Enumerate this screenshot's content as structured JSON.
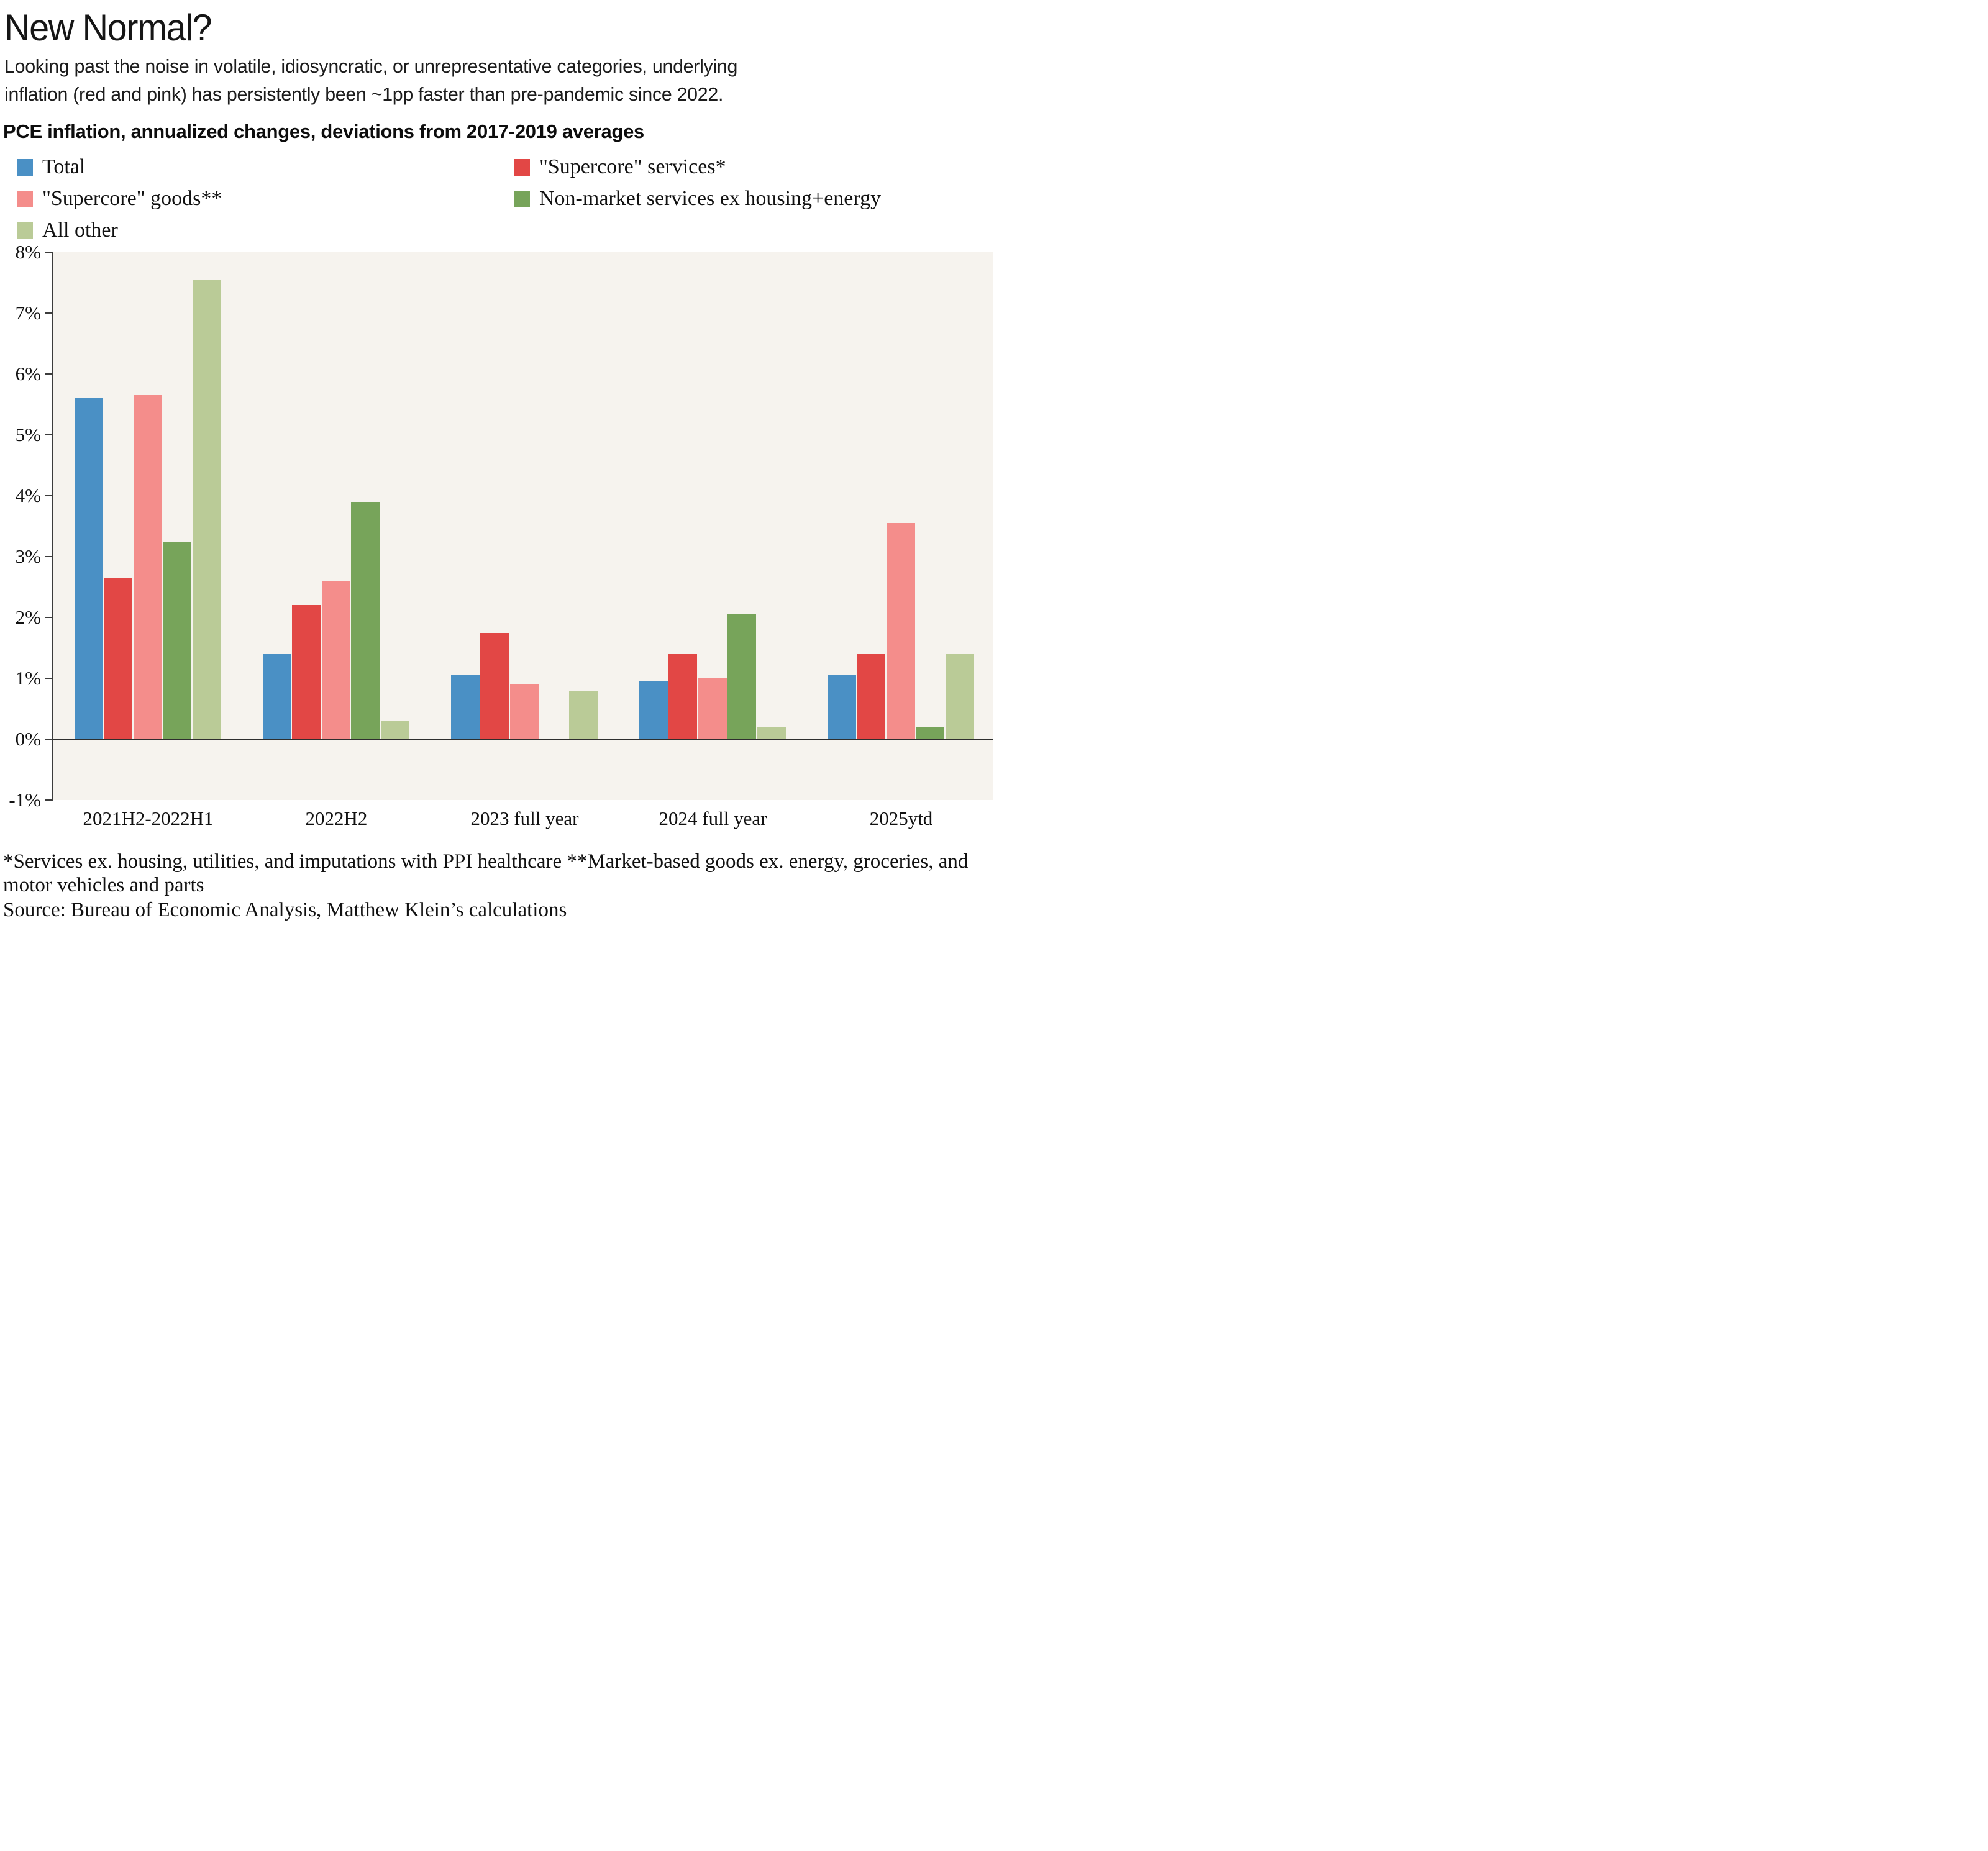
{
  "title": "New Normal?",
  "subtitle": "Looking past the noise in volatile, idiosyncratic, or unrepresentative categories, underlying\ninflation (red and pink) has persistently been ~1pp faster than pre-pandemic since 2022.",
  "chart_header": "PCE inflation, annualized changes, deviations from 2017-2019 averages",
  "footnote": "*Services ex. housing, utilities, and imputations with PPI healthcare  **Market-based goods ex. energy, groceries, and\nmotor vehicles and parts",
  "source": "Source: Bureau of Economic Analysis, Matthew Klein’s calculations",
  "chart_data": {
    "type": "bar",
    "title": "PCE inflation, annualized changes, deviations from 2017-2019 averages",
    "categories": [
      "2021H2-2022H1",
      "2022H2",
      "2023 full year",
      "2024 full year",
      "2025ytd"
    ],
    "series": [
      {
        "name": "Total",
        "color": "#4a90c5",
        "values": [
          5.6,
          1.4,
          1.05,
          0.95,
          1.05
        ]
      },
      {
        "name": "\"Supercore\" services*",
        "color": "#e24745",
        "values": [
          2.65,
          2.2,
          1.75,
          1.4,
          1.4
        ]
      },
      {
        "name": "\"Supercore\" goods**",
        "color": "#f48d8b",
        "values": [
          5.65,
          2.6,
          0.9,
          1.0,
          3.55
        ]
      },
      {
        "name": "Non-market services ex housing+energy",
        "color": "#77a45a",
        "values": [
          3.25,
          3.9,
          0,
          2.05,
          0.2
        ]
      },
      {
        "name": "All other",
        "color": "#bacb97",
        "values": [
          7.55,
          0.3,
          0.8,
          0.2,
          1.4
        ]
      }
    ],
    "xlabel": "",
    "ylabel": "",
    "ylim": [
      -1,
      8
    ],
    "yticks": [
      "8%",
      "7%",
      "6%",
      "5%",
      "4%",
      "3%",
      "2%",
      "1%",
      "0%",
      "-1%"
    ],
    "grid": false,
    "legend_position": "top",
    "plot_bg_color": "#f6f3ee",
    "axis_color": "#3c3c3c",
    "zero_line_color": "#2e2e2e"
  }
}
